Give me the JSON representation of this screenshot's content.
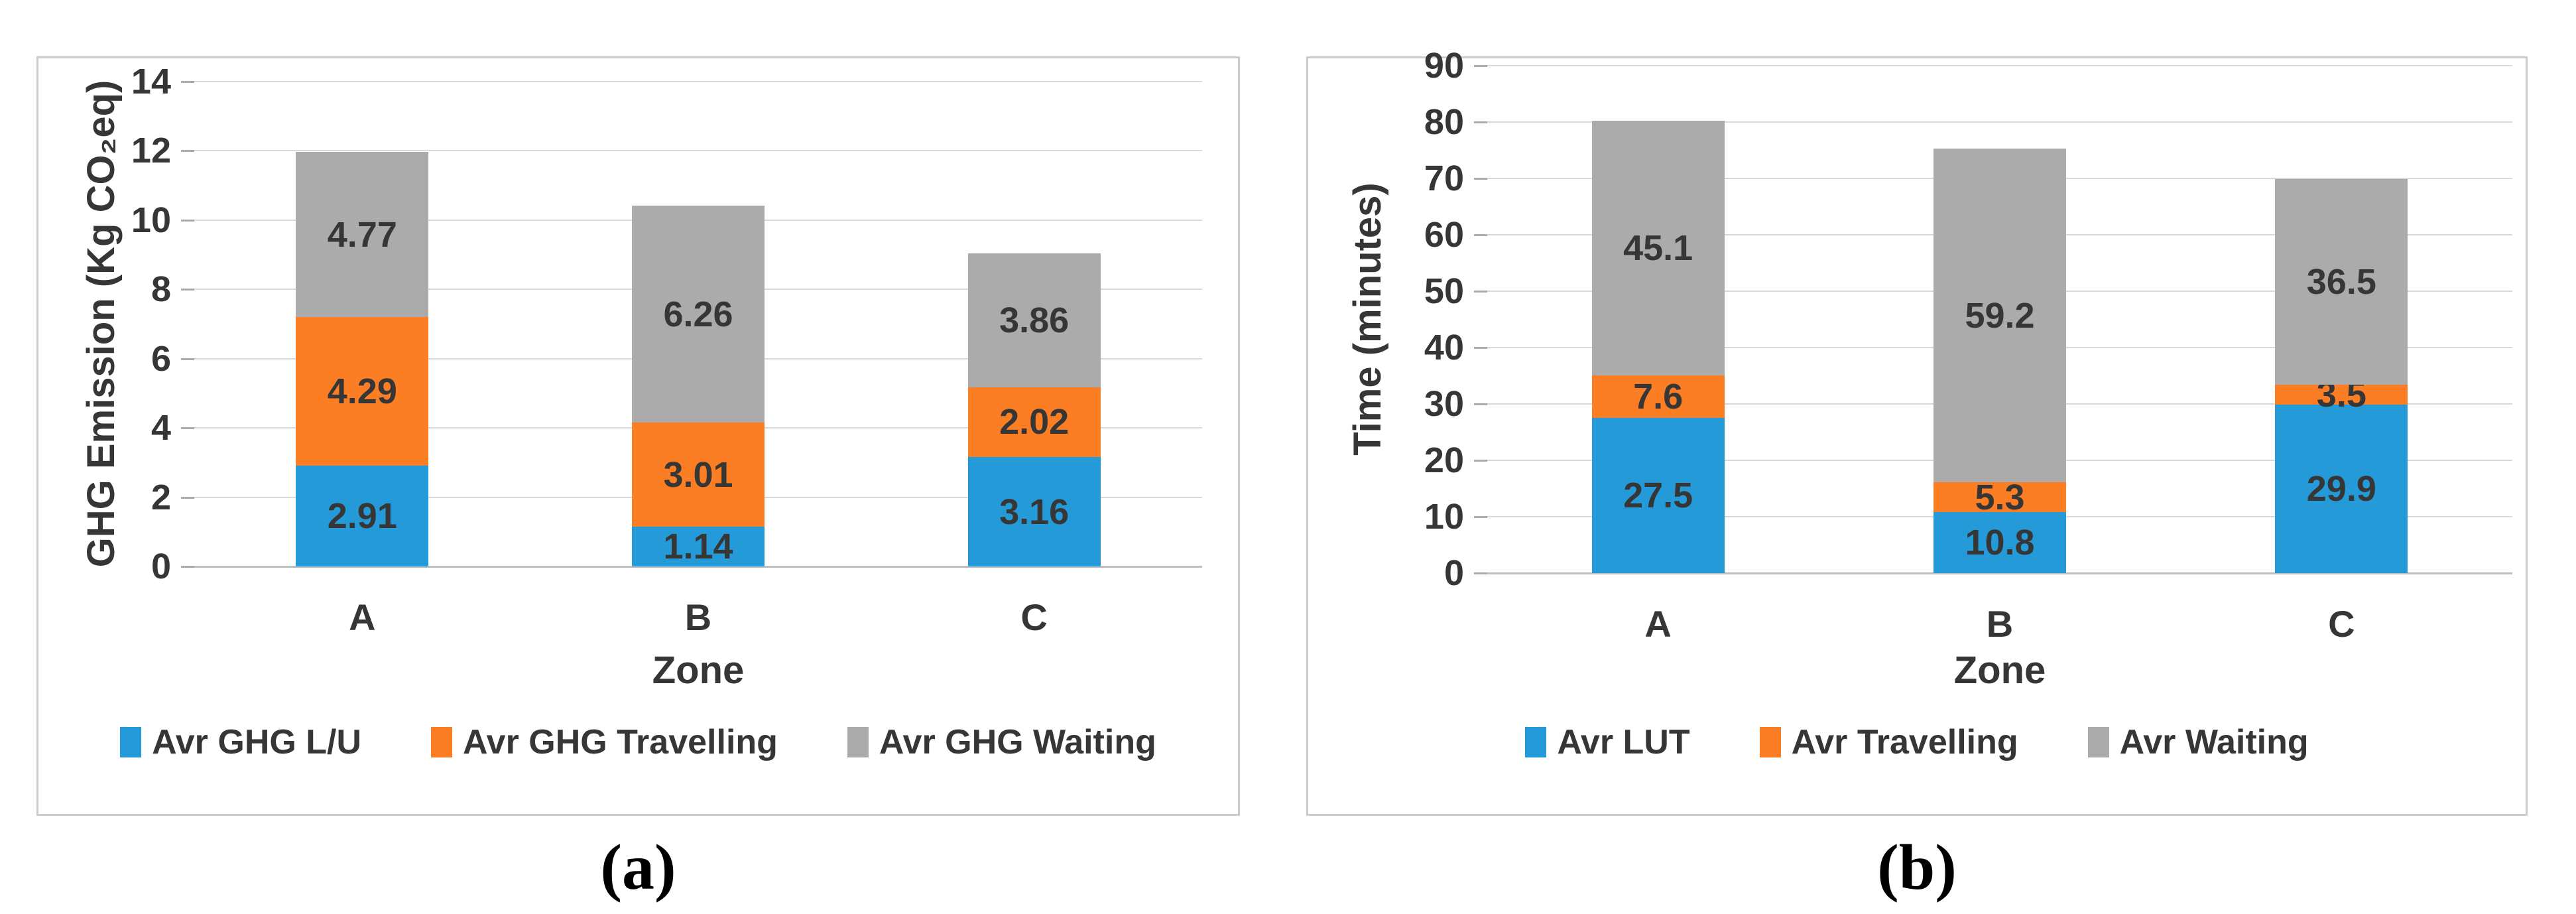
{
  "chart_data": [
    {
      "type": "bar",
      "stacked": true,
      "categories": [
        "A",
        "B",
        "C"
      ],
      "series": [
        {
          "name": "Avr GHG L/U",
          "color": "#249AD8",
          "values": [
            2.91,
            1.14,
            3.16
          ]
        },
        {
          "name": "Avr GHG Travelling",
          "color": "#FB7D24",
          "values": [
            4.29,
            3.01,
            2.02
          ]
        },
        {
          "name": "Avr GHG Waiting",
          "color": "#ABABAB",
          "values": [
            4.77,
            6.26,
            3.86
          ]
        }
      ],
      "xlabel": "Zone",
      "ylabel": "GHG Emission (Kg CO₂eq)",
      "ylim": [
        0,
        14
      ],
      "ytick_step": 2,
      "grid": true,
      "legend_position": "bottom",
      "caption": "(a)"
    },
    {
      "type": "bar",
      "stacked": true,
      "categories": [
        "A",
        "B",
        "C"
      ],
      "series": [
        {
          "name": "Avr LUT",
          "color": "#249AD8",
          "values": [
            27.5,
            10.8,
            29.9
          ]
        },
        {
          "name": "Avr Travelling",
          "color": "#FB7D24",
          "values": [
            7.6,
            5.3,
            3.5
          ]
        },
        {
          "name": "Avr Waiting",
          "color": "#ABABAB",
          "values": [
            45.1,
            59.2,
            36.5
          ]
        }
      ],
      "xlabel": "Zone",
      "ylabel": "Time (minutes)",
      "ylim": [
        0,
        90
      ],
      "ytick_step": 10,
      "grid": true,
      "legend_position": "bottom",
      "caption": "(b)"
    }
  ],
  "colors": {
    "grid": "#D9D9D9",
    "axis_line": "#BFBFBF",
    "tick_mark": "#ABABAB",
    "label_text": "#363636"
  }
}
